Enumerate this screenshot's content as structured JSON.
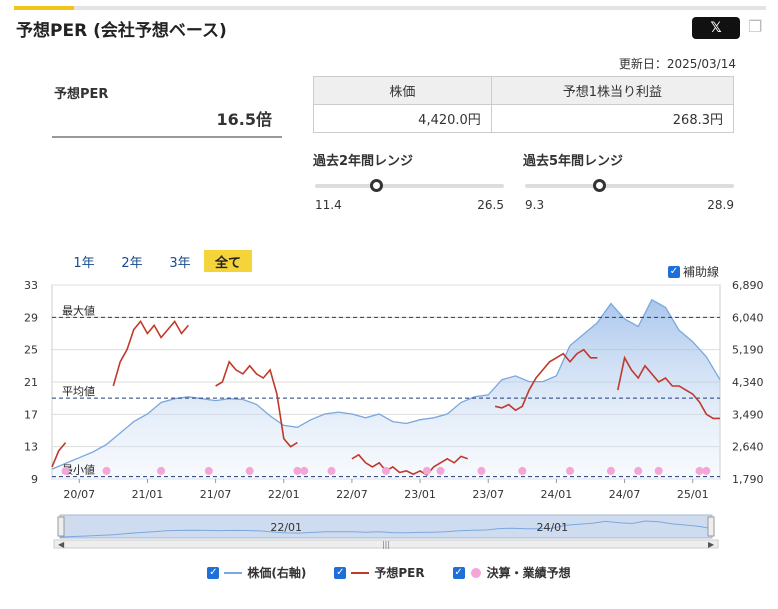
{
  "header": {
    "title": "予想PER (会社予想ベース)",
    "share_label": "𝕏",
    "updated": "更新日：2025/03/14"
  },
  "per": {
    "label": "予想PER",
    "value": "16.5倍"
  },
  "stats_table": {
    "headers": [
      "株価",
      "予想1株当り利益"
    ],
    "values": [
      "4,420.0円",
      "268.3円"
    ]
  },
  "ranges": [
    {
      "label": "過去2年間レンジ",
      "low": "11.4",
      "high": "26.5",
      "position": 0.41
    },
    {
      "label": "過去5年間レンジ",
      "low": "9.3",
      "high": "28.9",
      "position": 0.4
    }
  ],
  "periods": [
    "1年",
    "2年",
    "3年",
    "全て"
  ],
  "active_period": "全て",
  "guide_label": "補助線",
  "legend": [
    {
      "label": "株価(右軸)",
      "color": "#7aa8de",
      "kind": "line"
    },
    {
      "label": "予想PER",
      "color": "#c0392b",
      "kind": "line"
    },
    {
      "label": "決算・業績予想",
      "color": "#f4a6d7",
      "kind": "dot"
    }
  ],
  "chart_data": {
    "type": "line",
    "x_ticks": [
      "20/07",
      "21/01",
      "21/07",
      "22/01",
      "22/07",
      "23/01",
      "23/07",
      "24/01",
      "24/07",
      "25/01"
    ],
    "y_left": {
      "ticks": [
        9,
        13,
        17,
        21,
        25,
        29,
        33
      ],
      "range": [
        9,
        33
      ]
    },
    "y_right": {
      "ticks": [
        "1,790",
        "2,640",
        "3,490",
        "4,340",
        "5,190",
        "6,040",
        "6,890"
      ],
      "range": [
        1790,
        6890
      ]
    },
    "reference_lines": [
      {
        "label": "最大値",
        "value": 29.0
      },
      {
        "label": "平均値",
        "value": 19.0
      },
      {
        "label": "最小値",
        "value": 9.3
      }
    ],
    "navigator_ticks": [
      "22/01",
      "24/01"
    ],
    "series": [
      {
        "name": "株価(右軸)",
        "axis": "right",
        "x": [
          2020.3,
          2020.4,
          2020.5,
          2020.6,
          2020.7,
          2020.8,
          2020.9,
          2021.0,
          2021.1,
          2021.2,
          2021.3,
          2021.4,
          2021.5,
          2021.6,
          2021.7,
          2021.8,
          2021.9,
          2022.0,
          2022.1,
          2022.2,
          2022.3,
          2022.4,
          2022.5,
          2022.6,
          2022.7,
          2022.8,
          2022.9,
          2023.0,
          2023.1,
          2023.2,
          2023.3,
          2023.4,
          2023.5,
          2023.6,
          2023.7,
          2023.8,
          2023.9,
          2024.0,
          2024.1,
          2024.2,
          2024.3,
          2024.4,
          2024.5,
          2024.6,
          2024.7,
          2024.8,
          2024.9,
          2025.0,
          2025.1,
          2025.2
        ],
        "values": [
          2050,
          2200,
          2350,
          2500,
          2700,
          3000,
          3300,
          3500,
          3800,
          3900,
          3950,
          3900,
          3850,
          3900,
          3880,
          3750,
          3450,
          3200,
          3150,
          3350,
          3500,
          3550,
          3500,
          3400,
          3500,
          3300,
          3250,
          3350,
          3400,
          3500,
          3800,
          3950,
          4000,
          4400,
          4500,
          4350,
          4350,
          4500,
          5300,
          5600,
          5900,
          6400,
          6000,
          5800,
          6500,
          6300,
          5700,
          5400,
          5000,
          4400
        ]
      },
      {
        "name": "予想PER",
        "axis": "left",
        "segments": [
          {
            "x": [
              2020.3,
              2020.35,
              2020.4
            ],
            "values": [
              10.5,
              12.5,
              13.5
            ]
          },
          {
            "x": [
              2020.75,
              2020.8,
              2020.85,
              2020.9,
              2020.95,
              2021.0,
              2021.05,
              2021.1,
              2021.15,
              2021.2,
              2021.25,
              2021.3
            ],
            "values": [
              20.5,
              23.5,
              25.0,
              27.5,
              28.5,
              27.0,
              28.0,
              26.5,
              27.5,
              28.5,
              27.0,
              28.0
            ]
          },
          {
            "x": [
              2021.5,
              2021.55,
              2021.6,
              2021.65,
              2021.7,
              2021.75,
              2021.8,
              2021.85,
              2021.9,
              2021.95,
              2022.0,
              2022.05,
              2022.1
            ],
            "values": [
              20.5,
              21.0,
              23.5,
              22.5,
              22.0,
              23.0,
              22.0,
              21.5,
              22.5,
              19.5,
              14.0,
              13.0,
              13.5
            ]
          },
          {
            "x": [
              2022.5,
              2022.55,
              2022.6,
              2022.65,
              2022.7,
              2022.75,
              2022.8,
              2022.85,
              2022.9,
              2022.95,
              2023.0,
              2023.05,
              2023.1,
              2023.15,
              2023.2,
              2023.25,
              2023.3,
              2023.35
            ],
            "values": [
              11.5,
              12.0,
              11.0,
              10.5,
              11.0,
              10.0,
              10.5,
              9.8,
              10.0,
              9.6,
              10.0,
              9.5,
              10.5,
              11.0,
              11.5,
              11.0,
              11.8,
              11.5
            ]
          },
          {
            "x": [
              2023.55,
              2023.6,
              2023.65,
              2023.7,
              2023.75,
              2023.8,
              2023.85,
              2023.9,
              2023.95,
              2024.0,
              2024.05,
              2024.1,
              2024.15,
              2024.2,
              2024.25,
              2024.3
            ],
            "values": [
              18.0,
              17.8,
              18.2,
              17.5,
              18.0,
              20.0,
              21.5,
              22.5,
              23.5,
              24.0,
              24.5,
              23.5,
              24.5,
              25.0,
              24.0,
              24.0
            ]
          },
          {
            "x": [
              2024.45,
              2024.5,
              2024.55,
              2024.6,
              2024.65,
              2024.7,
              2024.75,
              2024.8,
              2024.85,
              2024.9,
              2024.95,
              2025.0,
              2025.05,
              2025.1,
              2025.15,
              2025.2
            ],
            "values": [
              20.0,
              24.0,
              22.5,
              21.5,
              23.0,
              22.0,
              21.0,
              21.5,
              20.5,
              20.5,
              20.0,
              19.5,
              18.5,
              17.0,
              16.5,
              16.5
            ]
          }
        ]
      },
      {
        "name": "決算・業績予想",
        "kind": "dots",
        "x": [
          2020.4,
          2020.7,
          2021.1,
          2021.45,
          2021.75,
          2022.1,
          2022.15,
          2022.35,
          2022.75,
          2023.05,
          2023.15,
          2023.45,
          2023.75,
          2024.1,
          2024.4,
          2024.6,
          2024.75,
          2025.05,
          2025.1
        ],
        "values": [
          10,
          10,
          10,
          10,
          10,
          10,
          10,
          10,
          10,
          10,
          10,
          10,
          10,
          10,
          10,
          10,
          10,
          10,
          10
        ]
      }
    ]
  }
}
